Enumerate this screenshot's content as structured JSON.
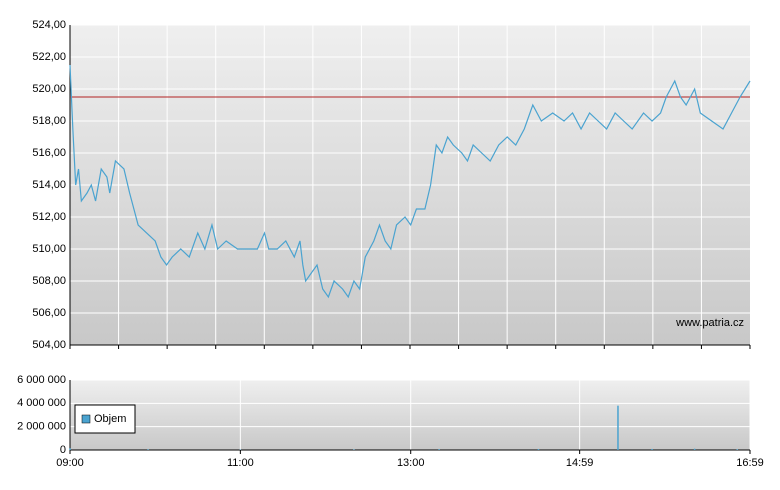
{
  "chart_data": [
    {
      "type": "line",
      "x": [
        0,
        2,
        4,
        6,
        8,
        12,
        15,
        18,
        22,
        26,
        28,
        32,
        38,
        42,
        48,
        60,
        64,
        68,
        72,
        78,
        84,
        90,
        95,
        100,
        104,
        110,
        118,
        126,
        132,
        137,
        140,
        146,
        152,
        158,
        162,
        164,
        166,
        170,
        174,
        178,
        182,
        186,
        192,
        196,
        200,
        204,
        208,
        214,
        218,
        222,
        226,
        230,
        236,
        240,
        244,
        250,
        254,
        258,
        262,
        266,
        270,
        276,
        280,
        284,
        290,
        296,
        302,
        308,
        314,
        320,
        326,
        332,
        340,
        348,
        354,
        360,
        366,
        372,
        378,
        384,
        390,
        396,
        404,
        410,
        416,
        420,
        426,
        430,
        434,
        440,
        444,
        452,
        460,
        466,
        472,
        479
      ],
      "series": [
        {
          "color": "#4aa3d0",
          "values": [
            521.5,
            517.5,
            514,
            515,
            513,
            513.5,
            514,
            513,
            515,
            514.5,
            513.5,
            515.5,
            515,
            513.5,
            511.5,
            510.5,
            509.5,
            509,
            509.5,
            510,
            509.5,
            511,
            510,
            511.5,
            510,
            510.5,
            510,
            510,
            510,
            511,
            510,
            510,
            510.5,
            509.5,
            510.5,
            509,
            508,
            508.5,
            509,
            507.5,
            507,
            508,
            507.5,
            507,
            508,
            507.5,
            509.5,
            510.5,
            511.5,
            510.5,
            510,
            511.5,
            512,
            511.5,
            512.5,
            512.5,
            514,
            516.5,
            516,
            517,
            516.5,
            516,
            515.5,
            516.5,
            516,
            515.5,
            516.5,
            517,
            516.5,
            517.5,
            519,
            518,
            518.5,
            518,
            518.5,
            517.5,
            518.5,
            518,
            517.5,
            518.5,
            518,
            517.5,
            518.5,
            518,
            518.5,
            519.5,
            520.5,
            519.5,
            519,
            520,
            518.5,
            518,
            517.5,
            518.5,
            519.5,
            520.5
          ]
        }
      ],
      "xlim": [
        0,
        479
      ],
      "ylim": [
        504,
        524
      ],
      "yticks": [
        {
          "value": 504,
          "label": "504,00"
        },
        {
          "value": 506,
          "label": "506,00"
        },
        {
          "value": 508,
          "label": "508,00"
        },
        {
          "value": 510,
          "label": "510,00"
        },
        {
          "value": 512,
          "label": "512,00"
        },
        {
          "value": 514,
          "label": "514,00"
        },
        {
          "value": 516,
          "label": "516,00"
        },
        {
          "value": 518,
          "label": "518,00"
        },
        {
          "value": 520,
          "label": "520,00"
        },
        {
          "value": 522,
          "label": "522,00"
        },
        {
          "value": 524,
          "label": "524,00"
        }
      ],
      "reference_line": {
        "value": 519.5,
        "color": "#b22222"
      },
      "annotation": "www.patria.cz",
      "grid": true
    },
    {
      "type": "bar",
      "x": [
        0,
        55,
        120,
        200,
        260,
        330,
        386,
        410,
        440,
        470
      ],
      "series": [
        {
          "name": "Objem",
          "color": "#4aa3d0",
          "values": [
            150000,
            60000,
            40000,
            50000,
            70000,
            80000,
            3800000,
            90000,
            110000,
            60000
          ]
        }
      ],
      "xlim": [
        0,
        479
      ],
      "xticks": [
        {
          "value": 0,
          "label": "09:00"
        },
        {
          "value": 120,
          "label": "11:00"
        },
        {
          "value": 240,
          "label": "13:00"
        },
        {
          "value": 359,
          "label": "14:59"
        },
        {
          "value": 479,
          "label": "16:59"
        }
      ],
      "ylim": [
        0,
        6000000
      ],
      "yticks": [
        {
          "value": 0,
          "label": "0"
        },
        {
          "value": 2000000,
          "label": "2 000 000"
        },
        {
          "value": 4000000,
          "label": "4 000 000"
        },
        {
          "value": 6000000,
          "label": "6 000 000"
        }
      ],
      "legend": "lower left",
      "grid": true
    }
  ]
}
